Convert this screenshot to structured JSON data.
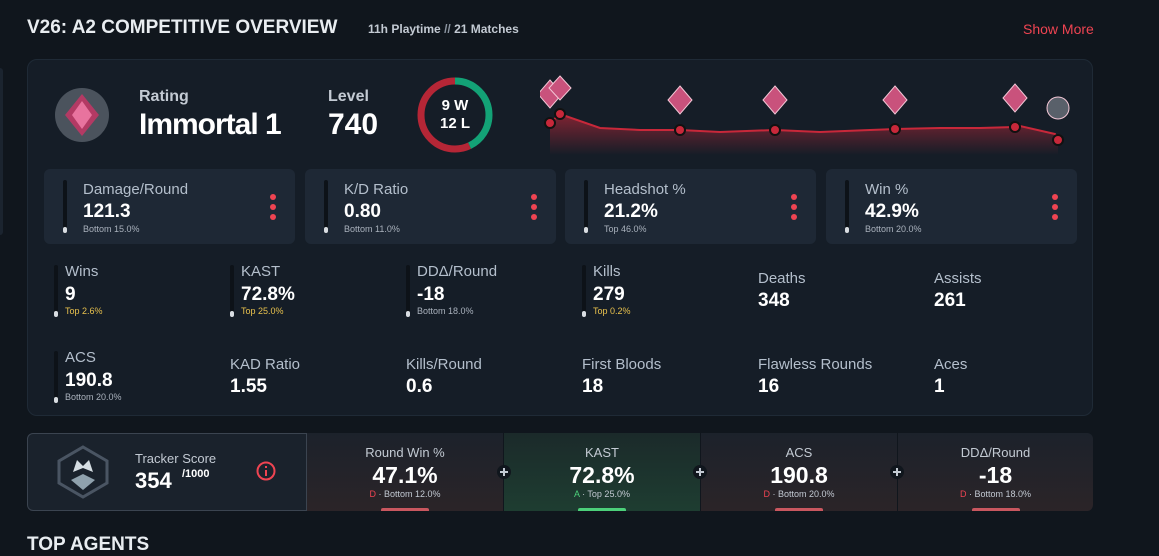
{
  "header": {
    "title": "V26: A2 COMPETITIVE OVERVIEW",
    "playtime": "11h Playtime",
    "separator": "//",
    "matches": "21 Matches",
    "show_more": "Show More"
  },
  "rating": {
    "label": "Rating",
    "rank": "Immortal 1"
  },
  "level": {
    "label": "Level",
    "value": "740"
  },
  "record": {
    "wins": 9,
    "wins_unit": "W",
    "losses": 12,
    "losses_unit": "L"
  },
  "main_stats": [
    {
      "name": "Damage/Round",
      "value": "121.3",
      "rank": "Bottom 15.0%"
    },
    {
      "name": "K/D Ratio",
      "value": "0.80",
      "rank": "Bottom 11.0%"
    },
    {
      "name": "Headshot %",
      "value": "21.2%",
      "rank": "Top 46.0%"
    },
    {
      "name": "Win %",
      "value": "42.9%",
      "rank": "Bottom 20.0%"
    }
  ],
  "stats": [
    {
      "name": "Wins",
      "value": "9",
      "rank": "Top 2.6%"
    },
    {
      "name": "KAST",
      "value": "72.8%",
      "rank": "Top 25.0%"
    },
    {
      "name": "DDΔ/Round",
      "value": "-18",
      "rank": "Bottom 18.0%"
    },
    {
      "name": "Kills",
      "value": "279",
      "rank": "Top 0.2%"
    },
    {
      "name": "Deaths",
      "value": "348"
    },
    {
      "name": "Assists",
      "value": "261"
    },
    {
      "name": "ACS",
      "value": "190.8",
      "rank": "Bottom 20.0%"
    },
    {
      "name": "KAD Ratio",
      "value": "1.55"
    },
    {
      "name": "Kills/Round",
      "value": "0.6"
    },
    {
      "name": "First Bloods",
      "value": "18"
    },
    {
      "name": "Flawless Rounds",
      "value": "16"
    },
    {
      "name": "Aces",
      "value": "1"
    }
  ],
  "tracker": {
    "label": "Tracker Score",
    "score": "354",
    "max": "/1000"
  },
  "summary_separator": "·",
  "summary": [
    {
      "name": "Round Win %",
      "value": "47.1%",
      "grade": "D",
      "rank": "Bottom 12.0%"
    },
    {
      "name": "KAST",
      "value": "72.8%",
      "grade": "A",
      "rank": "Top 25.0%"
    },
    {
      "name": "ACS",
      "value": "190.8",
      "grade": "D",
      "rank": "Bottom 20.0%"
    },
    {
      "name": "DDΔ/Round",
      "value": "-18",
      "grade": "D",
      "rank": "Bottom 18.0%"
    }
  ],
  "footer": {
    "title": "TOP AGENTS"
  }
}
